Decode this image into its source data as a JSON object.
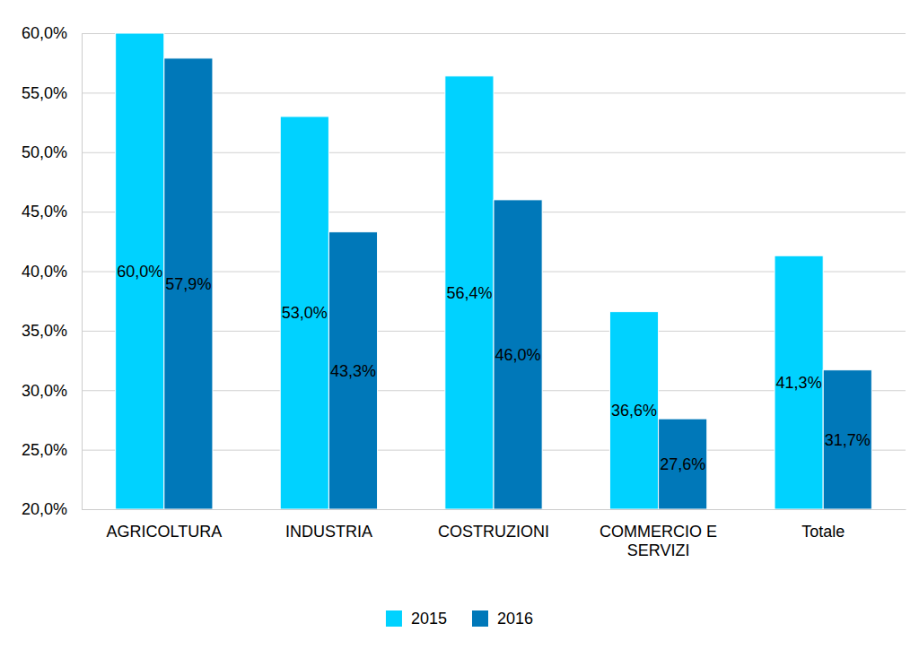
{
  "chart_data": {
    "type": "bar",
    "categories": [
      "AGRICOLTURA",
      "INDUSTRIA",
      "COSTRUZIONI",
      "COMMERCIO E SERVIZI",
      "Totale"
    ],
    "series": [
      {
        "name": "2015",
        "color": "#00d2ff",
        "values": [
          60.0,
          53.0,
          56.4,
          36.6,
          41.3
        ],
        "value_labels": [
          "60,0%",
          "53,0%",
          "56,4%",
          "36,6%",
          "41,3%"
        ]
      },
      {
        "name": "2016",
        "color": "#0078b9",
        "values": [
          57.9,
          43.3,
          46.0,
          27.6,
          31.7
        ],
        "value_labels": [
          "57,9%",
          "43,3%",
          "46,0%",
          "27,6%",
          "31,7%"
        ]
      }
    ],
    "ylim": [
      20,
      60
    ],
    "yticks": [
      {
        "value": 20,
        "label": "20,0%"
      },
      {
        "value": 25,
        "label": "25,0%"
      },
      {
        "value": 30,
        "label": "30,0%"
      },
      {
        "value": 35,
        "label": "35,0%"
      },
      {
        "value": 40,
        "label": "40,0%"
      },
      {
        "value": 45,
        "label": "45,0%"
      },
      {
        "value": 50,
        "label": "50,0%"
      },
      {
        "value": 55,
        "label": "55,0%"
      },
      {
        "value": 60,
        "label": "60,0%"
      }
    ],
    "grid": true,
    "legend": "bottom",
    "data_labels": true
  }
}
